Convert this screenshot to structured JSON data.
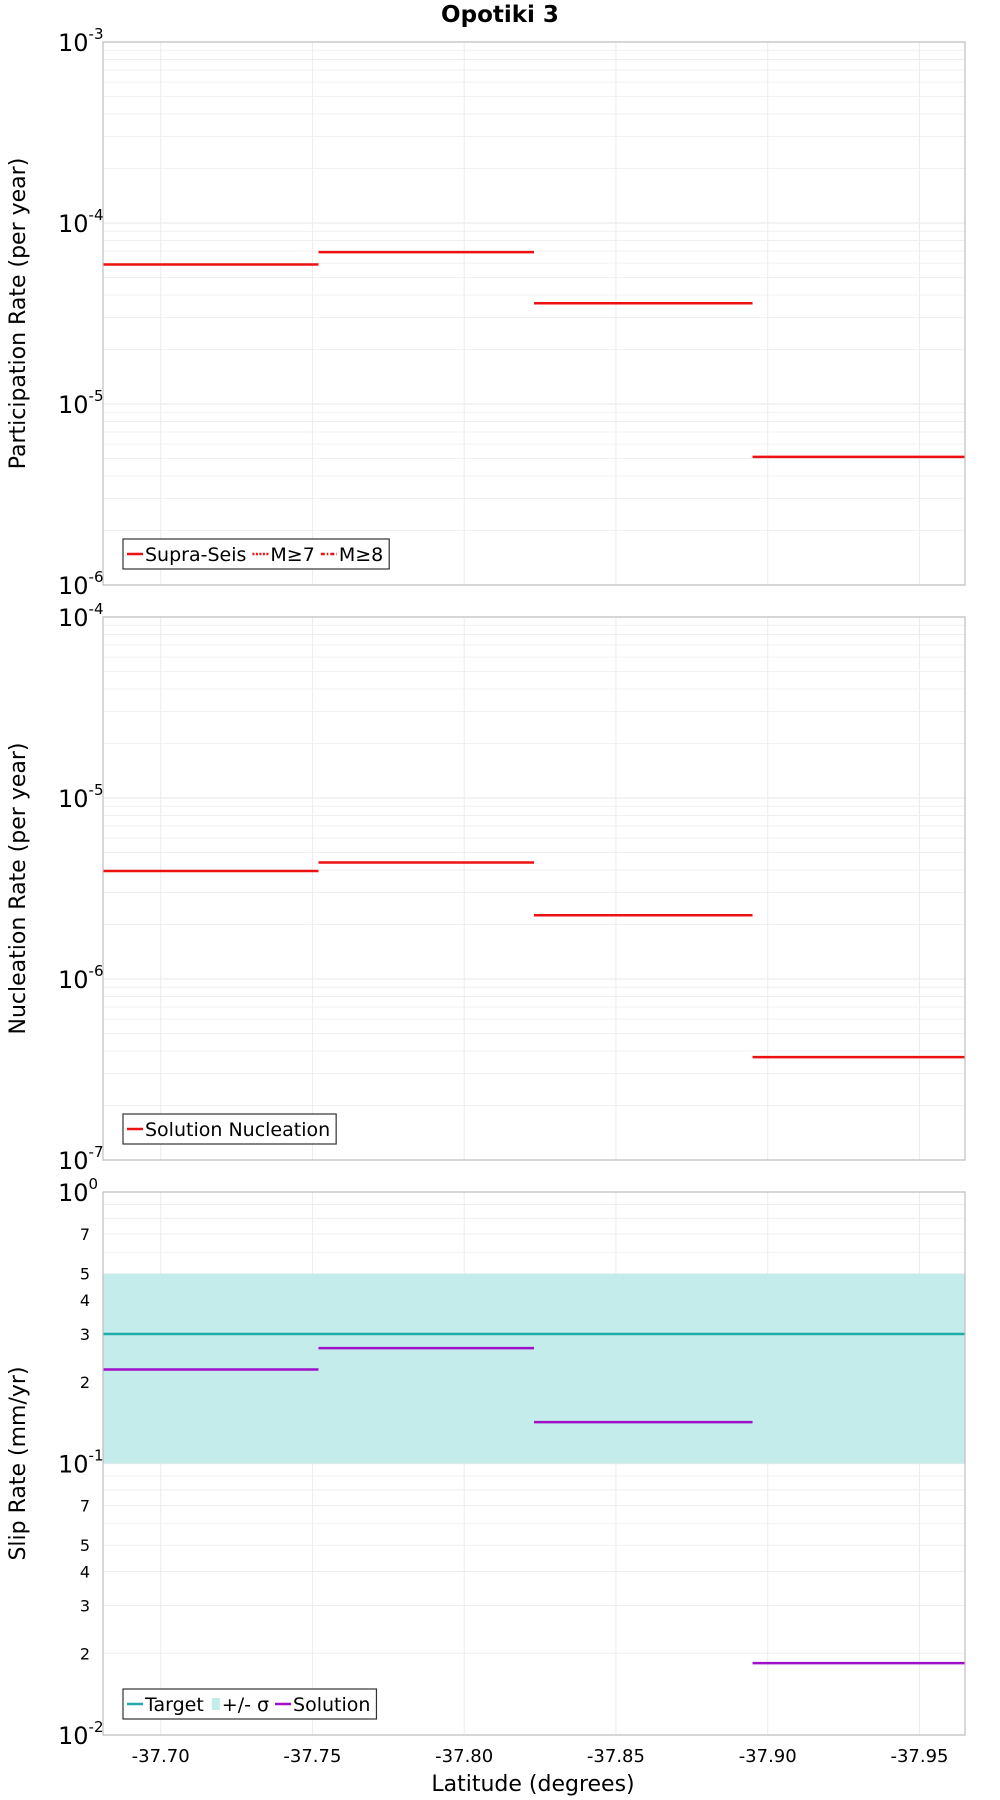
{
  "title": "Opotiki 3",
  "colors": {
    "red": "#ee1111",
    "teal": "#20aaa8",
    "band": "#c3ecea",
    "purple": "#a010c8",
    "grid": "#ececec",
    "frame": "#bdbdbd"
  },
  "x_axis": {
    "label": "Latitude (degrees)",
    "ticks": [
      "-37.70",
      "-37.75",
      "-37.80",
      "-37.85",
      "-37.90",
      "-37.95"
    ],
    "tick_values": [
      -37.7,
      -37.75,
      -37.8,
      -37.85,
      -37.9,
      -37.95
    ],
    "range": [
      -37.681,
      -37.965
    ]
  },
  "chart_data": [
    {
      "type": "line",
      "subtype": "step",
      "ylabel": "Participation Rate (per year)",
      "yscale": "log",
      "ylim": [
        1e-06,
        0.001
      ],
      "decade_exponents": [
        -3,
        -4,
        -5,
        -6
      ],
      "legend": {
        "position": "bottom-left",
        "entries": [
          {
            "label": "Supra-Seis",
            "style": "solid"
          },
          {
            "label": "M≥7",
            "style": "dotted"
          },
          {
            "label": "M≥8",
            "style": "dashdot"
          }
        ]
      },
      "series": [
        {
          "name": "Supra-Seis",
          "color": "#ee1111",
          "segments": [
            {
              "x0": -37.681,
              "x1": -37.752,
              "y": 5.9e-05
            },
            {
              "x0": -37.752,
              "x1": -37.823,
              "y": 6.9e-05
            },
            {
              "x0": -37.823,
              "x1": -37.895,
              "y": 3.6e-05
            },
            {
              "x0": -37.895,
              "x1": -37.965,
              "y": 5.1e-06
            }
          ]
        }
      ]
    },
    {
      "type": "line",
      "subtype": "step",
      "ylabel": "Nucleation Rate (per year)",
      "yscale": "log",
      "ylim": [
        1e-07,
        0.0001
      ],
      "decade_exponents": [
        -4,
        -5,
        -6,
        -7
      ],
      "legend": {
        "position": "bottom-left",
        "entries": [
          {
            "label": "Solution Nucleation",
            "style": "solid"
          }
        ]
      },
      "series": [
        {
          "name": "Solution Nucleation",
          "color": "#ee1111",
          "segments": [
            {
              "x0": -37.681,
              "x1": -37.752,
              "y": 3.95e-06
            },
            {
              "x0": -37.752,
              "x1": -37.823,
              "y": 4.4e-06
            },
            {
              "x0": -37.823,
              "x1": -37.895,
              "y": 2.25e-06
            },
            {
              "x0": -37.895,
              "x1": -37.965,
              "y": 3.7e-07
            }
          ]
        }
      ]
    },
    {
      "type": "line",
      "subtype": "step",
      "ylabel": "Slip Rate (mm/yr)",
      "yscale": "log",
      "ylim": [
        0.01,
        1
      ],
      "decade_exponents": [
        0,
        -1,
        -2
      ],
      "minor_ticks": [
        {
          "label": "7",
          "value": 0.7
        },
        {
          "label": "5",
          "value": 0.5
        },
        {
          "label": "4",
          "value": 0.4
        },
        {
          "label": "3",
          "value": 0.3
        },
        {
          "label": "2",
          "value": 0.2
        },
        {
          "label": "7",
          "value": 0.07
        },
        {
          "label": "5",
          "value": 0.05
        },
        {
          "label": "4",
          "value": 0.04
        },
        {
          "label": "3",
          "value": 0.03
        },
        {
          "label": "2",
          "value": 0.02
        }
      ],
      "legend": {
        "position": "bottom-left",
        "entries": [
          {
            "label": "Target",
            "style": "solid"
          },
          {
            "label": "+/- σ",
            "style": "band"
          },
          {
            "label": "Solution",
            "style": "solid"
          }
        ]
      },
      "target": 0.3,
      "band": [
        0.1,
        0.5
      ],
      "series": [
        {
          "name": "Solution",
          "color": "#a010c8",
          "segments": [
            {
              "x0": -37.681,
              "x1": -37.752,
              "y": 0.222
            },
            {
              "x0": -37.752,
              "x1": -37.823,
              "y": 0.266
            },
            {
              "x0": -37.823,
              "x1": -37.895,
              "y": 0.142
            },
            {
              "x0": -37.895,
              "x1": -37.965,
              "y": 0.0184
            }
          ]
        }
      ]
    }
  ]
}
